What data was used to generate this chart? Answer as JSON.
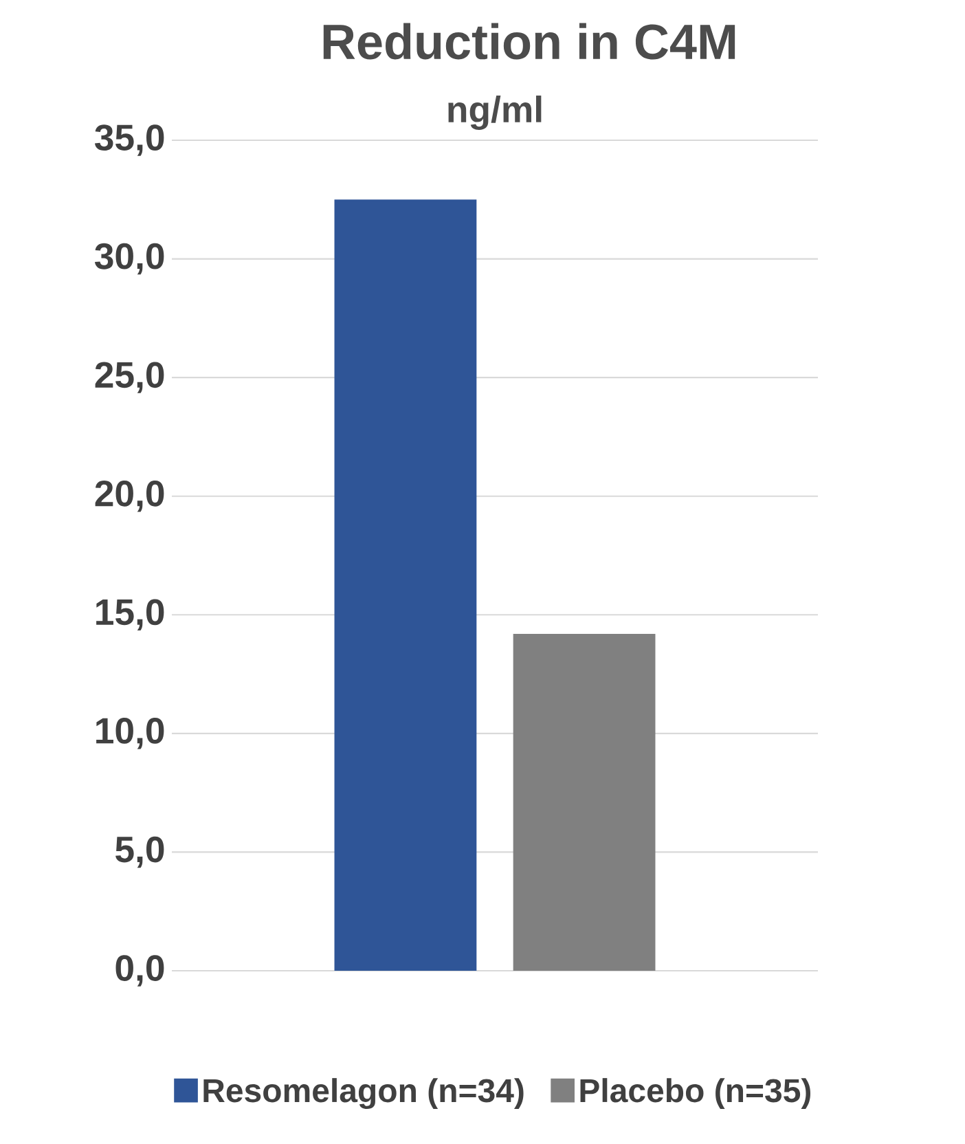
{
  "chart_data": {
    "type": "bar",
    "title": "Reduction  in C4M",
    "subtitle": "ng/ml",
    "categories": [
      null
    ],
    "series": [
      {
        "name": "Resomelagon (n=34)",
        "color": "#2f5597",
        "values": [
          32.5
        ]
      },
      {
        "name": "Placebo (n=35)",
        "color": "#808080",
        "values": [
          14.2
        ]
      }
    ],
    "ylim": [
      0,
      35
    ],
    "yticks": [
      {
        "value": 0,
        "label": "0,0"
      },
      {
        "value": 5,
        "label": "5,0"
      },
      {
        "value": 10,
        "label": "10,0"
      },
      {
        "value": 15,
        "label": "15,0"
      },
      {
        "value": 20,
        "label": "20,0"
      },
      {
        "value": 25,
        "label": "25,0"
      },
      {
        "value": 30,
        "label": "30,0"
      },
      {
        "value": 35,
        "label": "35,0"
      }
    ],
    "grid": "y",
    "legend": "bottom"
  }
}
